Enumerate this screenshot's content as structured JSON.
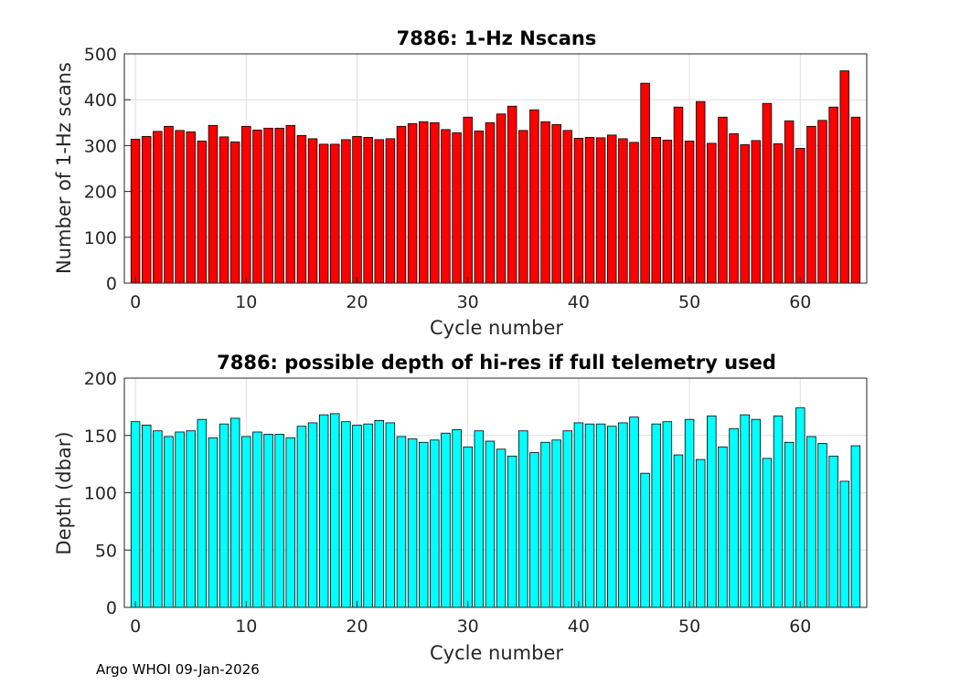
{
  "chart_data": [
    {
      "type": "bar",
      "title": "7886: 1-Hz Nscans",
      "xlabel": "Cycle number",
      "ylabel": "Number of 1-Hz scans",
      "x": [
        0,
        1,
        2,
        3,
        4,
        5,
        6,
        7,
        8,
        9,
        10,
        11,
        12,
        13,
        14,
        15,
        16,
        17,
        18,
        19,
        20,
        21,
        22,
        23,
        24,
        25,
        26,
        27,
        28,
        29,
        30,
        31,
        32,
        33,
        34,
        35,
        36,
        37,
        38,
        39,
        40,
        41,
        42,
        43,
        44,
        45,
        46,
        47,
        48,
        49,
        50,
        51,
        52,
        53,
        54,
        55,
        56,
        57,
        58,
        59,
        60,
        61,
        62,
        63,
        64,
        65
      ],
      "values": [
        314,
        320,
        331,
        342,
        333,
        330,
        310,
        344,
        319,
        308,
        342,
        334,
        338,
        338,
        344,
        322,
        315,
        303,
        303,
        313,
        320,
        318,
        313,
        315,
        342,
        348,
        352,
        350,
        335,
        328,
        362,
        332,
        350,
        369,
        386,
        333,
        378,
        352,
        346,
        333,
        316,
        318,
        317,
        323,
        315,
        307,
        436,
        318,
        312,
        384,
        310,
        396,
        305,
        362,
        326,
        302,
        311,
        392,
        304,
        354,
        294,
        342,
        355,
        384,
        463,
        362
      ],
      "xlim": [
        -1,
        66
      ],
      "ylim": [
        0,
        500
      ],
      "xticks": [
        "0",
        "10",
        "20",
        "30",
        "40",
        "50",
        "60"
      ],
      "yticks": [
        "0",
        "100",
        "200",
        "300",
        "400",
        "500"
      ],
      "bar_color": "#ff0000",
      "grid": true
    },
    {
      "type": "bar",
      "title": "7886: possible depth of hi-res if full telemetry used",
      "xlabel": "Cycle number",
      "ylabel": "Depth (dbar)",
      "x": [
        0,
        1,
        2,
        3,
        4,
        5,
        6,
        7,
        8,
        9,
        10,
        11,
        12,
        13,
        14,
        15,
        16,
        17,
        18,
        19,
        20,
        21,
        22,
        23,
        24,
        25,
        26,
        27,
        28,
        29,
        30,
        31,
        32,
        33,
        34,
        35,
        36,
        37,
        38,
        39,
        40,
        41,
        42,
        43,
        44,
        45,
        46,
        47,
        48,
        49,
        50,
        51,
        52,
        53,
        54,
        55,
        56,
        57,
        58,
        59,
        60,
        61,
        62,
        63,
        64,
        65
      ],
      "values": [
        162,
        159,
        154,
        149,
        153,
        154,
        164,
        148,
        160,
        165,
        149,
        153,
        151,
        151,
        148,
        158,
        161,
        168,
        169,
        162,
        159,
        160,
        163,
        161,
        149,
        147,
        144,
        146,
        152,
        155,
        140,
        154,
        145,
        138,
        132,
        154,
        135,
        144,
        146,
        154,
        161,
        160,
        160,
        158,
        161,
        166,
        117,
        160,
        162,
        133,
        164,
        129,
        167,
        140,
        156,
        168,
        164,
        130,
        167,
        144,
        174,
        149,
        143,
        132,
        110,
        141
      ],
      "xlim": [
        -1,
        66
      ],
      "ylim": [
        0,
        200
      ],
      "xticks": [
        "0",
        "10",
        "20",
        "30",
        "40",
        "50",
        "60"
      ],
      "yticks": [
        "0",
        "50",
        "100",
        "150",
        "200"
      ],
      "bar_color": "#00ffff",
      "grid": true
    }
  ],
  "footer": "Argo WHOI 09-Jan-2026"
}
